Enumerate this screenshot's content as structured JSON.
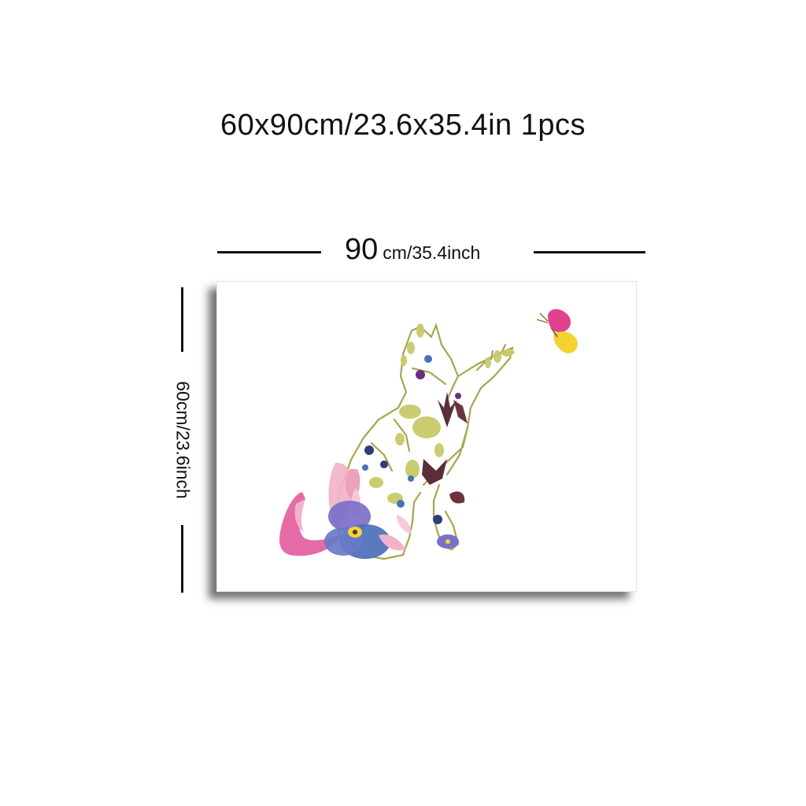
{
  "title": "60x90cm/23.6x35.4in 1pcs",
  "width_dimension": {
    "value": "90",
    "unit_text": "cm/35.4inch"
  },
  "height_dimension": {
    "text": "60cm/23.6inch"
  },
  "artwork": {
    "subject_icons": [
      "floral-cat-illustration-icon",
      "butterfly-icon"
    ],
    "colors": {
      "pink": "#e2559a",
      "light_pink": "#f2b3c9",
      "violet": "#7b6fc9",
      "blue": "#4c6fb8",
      "navy": "#2c3f7a",
      "olive": "#a7a552",
      "yellow_green": "#c9c96a",
      "plum": "#5a2d3b",
      "purple": "#6c2b7f",
      "yellow": "#f3d332"
    }
  }
}
